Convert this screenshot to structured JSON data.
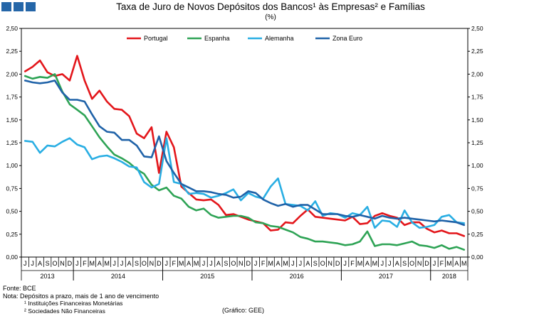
{
  "header": {
    "title": "Taxa de Juro de Novos Depósitos dos Bancos¹ às Empresas² e Famílias",
    "subtitle": "(%)"
  },
  "footer": {
    "source": "Fonte: BCE",
    "note": "Nota: Depósitos a prazo, mais de 1 ano de vencimento",
    "footnote_1": "¹ Instituições Financeiras Monetárias",
    "footnote_2": "² Sociedades Não Financeiras",
    "credit": "(Gráfico: GEE)"
  },
  "chart_data": {
    "type": "line",
    "title": "Taxa de Juro de Novos Depósitos dos Bancos¹ às Empresas² e Famílias",
    "unit": "(%)",
    "ylim": [
      0,
      2.5
    ],
    "yticks": [
      "0,00",
      "0,25",
      "0,50",
      "0,75",
      "1,00",
      "1,25",
      "1,50",
      "1,75",
      "2,00",
      "2,25",
      "2,50"
    ],
    "y2ticks": [
      "0,00",
      "0,25",
      "0,50",
      "0,75",
      "1,00",
      "1,25",
      "1,50",
      "1,75",
      "2,00",
      "2,25",
      "2,50"
    ],
    "legend_position": "top",
    "months": [
      "J",
      "J",
      "A",
      "S",
      "O",
      "N",
      "D",
      "J",
      "F",
      "M",
      "A",
      "M",
      "J",
      "J",
      "A",
      "S",
      "O",
      "N",
      "D",
      "J",
      "F",
      "M",
      "A",
      "M",
      "J",
      "J",
      "A",
      "S",
      "O",
      "N",
      "D",
      "J",
      "F",
      "M",
      "A",
      "M",
      "J",
      "J",
      "A",
      "S",
      "O",
      "N",
      "D",
      "J",
      "F",
      "M",
      "A",
      "M",
      "J",
      "J",
      "A",
      "S",
      "O",
      "N",
      "D",
      "J",
      "F",
      "M",
      "A",
      "M"
    ],
    "years": [
      {
        "label": "2013",
        "start": 0,
        "count": 7
      },
      {
        "label": "2014",
        "start": 7,
        "count": 12
      },
      {
        "label": "2015",
        "start": 19,
        "count": 12
      },
      {
        "label": "2016",
        "start": 31,
        "count": 12
      },
      {
        "label": "2017",
        "start": 43,
        "count": 12
      },
      {
        "label": "2018",
        "start": 55,
        "count": 5
      }
    ],
    "series": [
      {
        "name": "Portugal",
        "color": "#e3161b",
        "values": [
          2.03,
          2.08,
          2.15,
          2.02,
          1.98,
          2.0,
          1.93,
          2.2,
          1.93,
          1.73,
          1.82,
          1.7,
          1.62,
          1.61,
          1.54,
          1.35,
          1.3,
          1.42,
          0.92,
          1.37,
          1.2,
          0.77,
          0.7,
          0.63,
          0.62,
          0.63,
          0.57,
          0.46,
          0.47,
          0.44,
          0.41,
          0.39,
          0.37,
          0.29,
          0.3,
          0.38,
          0.37,
          0.45,
          0.52,
          0.44,
          0.43,
          0.42,
          0.41,
          0.4,
          0.44,
          0.36,
          0.37,
          0.45,
          0.48,
          0.45,
          0.43,
          0.35,
          0.38,
          0.38,
          0.31,
          0.27,
          0.29,
          0.26,
          0.26,
          0.23
        ]
      },
      {
        "name": "Espanha",
        "color": "#2ea355",
        "values": [
          1.98,
          1.95,
          1.97,
          1.96,
          2.0,
          1.81,
          1.67,
          1.61,
          1.55,
          1.43,
          1.31,
          1.21,
          1.12,
          1.08,
          1.03,
          0.96,
          0.91,
          0.79,
          0.73,
          0.76,
          0.67,
          0.64,
          0.55,
          0.51,
          0.53,
          0.46,
          0.43,
          0.44,
          0.45,
          0.45,
          0.43,
          0.38,
          0.37,
          0.34,
          0.33,
          0.3,
          0.27,
          0.22,
          0.2,
          0.17,
          0.17,
          0.16,
          0.15,
          0.13,
          0.14,
          0.17,
          0.28,
          0.12,
          0.14,
          0.14,
          0.13,
          0.15,
          0.17,
          0.13,
          0.12,
          0.1,
          0.13,
          0.09,
          0.11,
          0.08
        ]
      },
      {
        "name": "Alemanha",
        "color": "#29aee3",
        "values": [
          1.27,
          1.26,
          1.14,
          1.22,
          1.21,
          1.26,
          1.3,
          1.23,
          1.2,
          1.07,
          1.1,
          1.11,
          1.08,
          1.04,
          0.99,
          0.98,
          0.82,
          0.76,
          0.8,
          1.3,
          0.82,
          0.8,
          0.69,
          0.7,
          0.69,
          0.65,
          0.67,
          0.7,
          0.74,
          0.62,
          0.7,
          0.66,
          0.64,
          0.77,
          0.86,
          0.58,
          0.57,
          0.56,
          0.51,
          0.61,
          0.45,
          0.48,
          0.47,
          0.43,
          0.48,
          0.46,
          0.55,
          0.32,
          0.4,
          0.39,
          0.33,
          0.51,
          0.38,
          0.32,
          0.33,
          0.35,
          0.44,
          0.46,
          0.38,
          0.37
        ]
      },
      {
        "name": "Zona Euro",
        "color": "#1f62a8",
        "values": [
          1.93,
          1.91,
          1.9,
          1.91,
          1.93,
          1.8,
          1.72,
          1.72,
          1.7,
          1.56,
          1.43,
          1.37,
          1.36,
          1.28,
          1.28,
          1.22,
          1.1,
          1.09,
          1.32,
          1.05,
          0.92,
          0.8,
          0.76,
          0.72,
          0.72,
          0.71,
          0.69,
          0.68,
          0.65,
          0.66,
          0.72,
          0.7,
          0.63,
          0.59,
          0.56,
          0.58,
          0.55,
          0.57,
          0.57,
          0.52,
          0.47,
          0.47,
          0.47,
          0.45,
          0.44,
          0.46,
          0.44,
          0.42,
          0.45,
          0.43,
          0.42,
          0.43,
          0.42,
          0.41,
          0.4,
          0.39,
          0.4,
          0.39,
          0.38,
          0.35
        ]
      }
    ]
  }
}
